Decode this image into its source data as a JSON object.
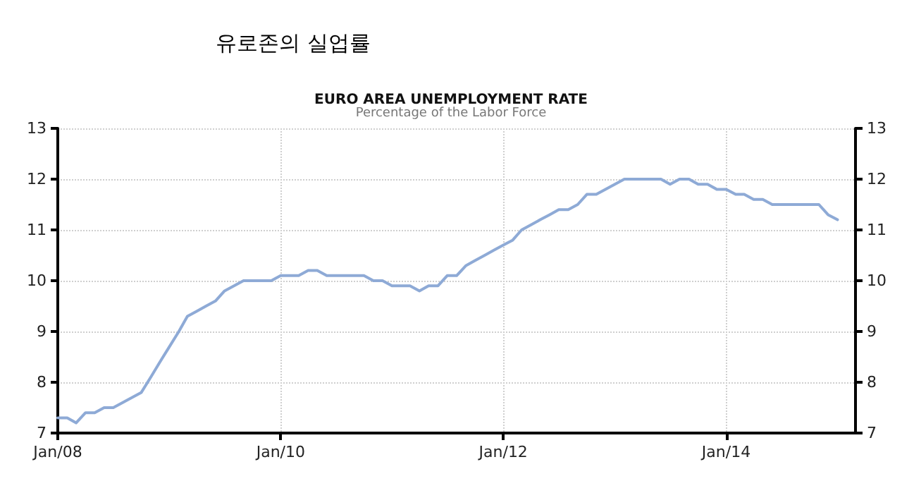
{
  "chart_data": {
    "type": "line",
    "title": "유로존의 실업률",
    "subtitle": "EURO AREA UNEMPLOYMENT RATE",
    "annotations": [
      "Percentage of the Labor Force"
    ],
    "x": [
      "2008-01",
      "2008-02",
      "2008-03",
      "2008-04",
      "2008-05",
      "2008-06",
      "2008-07",
      "2008-08",
      "2008-09",
      "2008-10",
      "2008-11",
      "2008-12",
      "2009-01",
      "2009-02",
      "2009-03",
      "2009-04",
      "2009-05",
      "2009-06",
      "2009-07",
      "2009-08",
      "2009-09",
      "2009-10",
      "2009-11",
      "2009-12",
      "2010-01",
      "2010-02",
      "2010-03",
      "2010-04",
      "2010-05",
      "2010-06",
      "2010-07",
      "2010-08",
      "2010-09",
      "2010-10",
      "2010-11",
      "2010-12",
      "2011-01",
      "2011-02",
      "2011-03",
      "2011-04",
      "2011-05",
      "2011-06",
      "2011-07",
      "2011-08",
      "2011-09",
      "2011-10",
      "2011-11",
      "2011-12",
      "2012-01",
      "2012-02",
      "2012-03",
      "2012-04",
      "2012-05",
      "2012-06",
      "2012-07",
      "2012-08",
      "2012-09",
      "2012-10",
      "2012-11",
      "2012-12",
      "2013-01",
      "2013-02",
      "2013-03",
      "2013-04",
      "2013-05",
      "2013-06",
      "2013-07",
      "2013-08",
      "2013-09",
      "2013-10",
      "2013-11",
      "2013-12",
      "2014-01",
      "2014-02",
      "2014-03",
      "2014-04",
      "2014-05",
      "2014-06",
      "2014-07",
      "2014-08",
      "2014-09",
      "2014-10",
      "2014-11",
      "2014-12",
      "2015-01"
    ],
    "series": [
      {
        "color": "#8eaad6",
        "values": [
          7.3,
          7.3,
          7.2,
          7.4,
          7.4,
          7.5,
          7.5,
          7.6,
          7.7,
          7.8,
          8.1,
          8.4,
          8.7,
          9.0,
          9.3,
          9.4,
          9.5,
          9.6,
          9.8,
          9.9,
          10.0,
          10.0,
          10.0,
          10.0,
          10.1,
          10.1,
          10.1,
          10.2,
          10.2,
          10.1,
          10.1,
          10.1,
          10.1,
          10.1,
          10.0,
          10.0,
          9.9,
          9.9,
          9.9,
          9.8,
          9.9,
          9.9,
          10.1,
          10.1,
          10.3,
          10.4,
          10.5,
          10.6,
          10.7,
          10.8,
          11.0,
          11.1,
          11.2,
          11.3,
          11.4,
          11.4,
          11.5,
          11.7,
          11.7,
          11.8,
          11.9,
          12.0,
          12.0,
          12.0,
          12.0,
          12.0,
          11.9,
          12.0,
          12.0,
          11.9,
          11.9,
          11.8,
          11.8,
          11.7,
          11.7,
          11.6,
          11.6,
          11.5,
          11.5,
          11.5,
          11.5,
          11.5,
          11.5,
          11.3,
          11.2
        ]
      }
    ],
    "xlim": [
      "2008-01",
      "2015-03"
    ],
    "xticks": [
      {
        "value": "2008-01",
        "label": "Jan/08"
      },
      {
        "value": "2010-01",
        "label": "Jan/10"
      },
      {
        "value": "2012-01",
        "label": "Jan/12"
      },
      {
        "value": "2014-01",
        "label": "Jan/14"
      }
    ],
    "ylim": [
      7,
      13
    ],
    "yticks": [
      7,
      8,
      9,
      10,
      11,
      12,
      13
    ],
    "y2lim": [
      7,
      13
    ],
    "y2ticks": [
      7,
      8,
      9,
      10,
      11,
      12,
      13
    ],
    "grid": true,
    "marker": "none",
    "line_style": "solid"
  }
}
